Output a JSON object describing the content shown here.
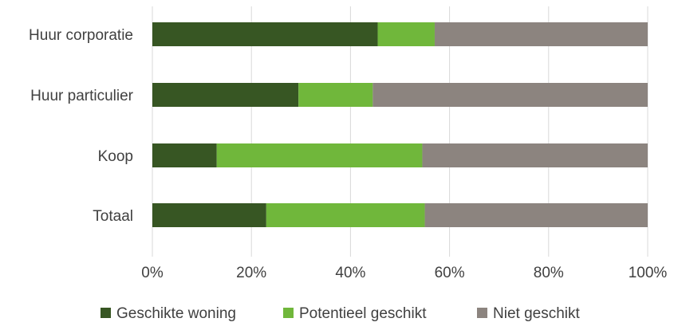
{
  "chart_data": {
    "type": "bar",
    "orientation": "horizontal",
    "stacked": "percent",
    "categories": [
      "Huur corporatie",
      "Huur particulier",
      "Koop",
      "Totaal"
    ],
    "series": [
      {
        "name": "Geschikte woning",
        "color": "#375623",
        "values": [
          45.5,
          29.5,
          13,
          23
        ]
      },
      {
        "name": "Potentieel geschikt",
        "color": "#70b73b",
        "values": [
          11.5,
          15,
          41.5,
          32
        ]
      },
      {
        "name": "Niet geschikt",
        "color": "#8c847f",
        "values": [
          43,
          55.5,
          45.5,
          45
        ]
      }
    ],
    "xlim": [
      0,
      100
    ],
    "xticks": [
      "0%",
      "20%",
      "40%",
      "60%",
      "80%",
      "100%"
    ],
    "grid": "vertical",
    "legend": "bottom"
  }
}
